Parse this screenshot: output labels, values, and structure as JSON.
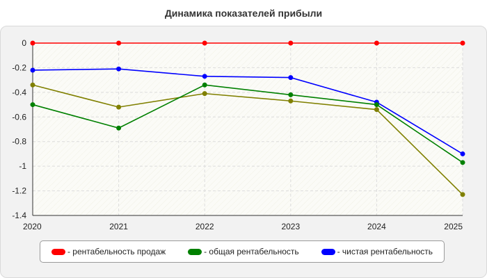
{
  "chart_data": {
    "type": "line",
    "title": "Динамика показателей прибыли",
    "x": [
      "2020",
      "2021",
      "2022",
      "2023",
      "2024",
      "2025"
    ],
    "yticks": [
      "0",
      "-0.2",
      "-0.4",
      "-0.6",
      "-0.8",
      "-1",
      "-1.2",
      "-1.4"
    ],
    "ylim": [
      -1.4,
      0
    ],
    "grid": true,
    "legend_position": "bottom",
    "series": [
      {
        "name": "рентабельность продаж",
        "color": "#ff0000",
        "values": [
          0,
          0,
          0,
          0,
          0,
          0
        ]
      },
      {
        "name": "общая рентабельность",
        "color": "#008000",
        "values": [
          -0.5,
          -0.69,
          -0.34,
          -0.42,
          -0.5,
          -0.97
        ]
      },
      {
        "name": "чистая рентабельность",
        "color": "#0000ff",
        "values": [
          -0.22,
          -0.21,
          -0.27,
          -0.28,
          -0.48,
          -0.9
        ]
      },
      {
        "name": "",
        "color": "#808000",
        "values": [
          -0.34,
          -0.52,
          -0.41,
          -0.47,
          -0.54,
          -1.23
        ]
      }
    ],
    "legend": [
      {
        "label": "- рентабельность продаж",
        "color": "#ff0000"
      },
      {
        "label": "- общая рентабельность",
        "color": "#008000"
      },
      {
        "label": "- чистая рентабельность",
        "color": "#0000ff"
      }
    ]
  }
}
